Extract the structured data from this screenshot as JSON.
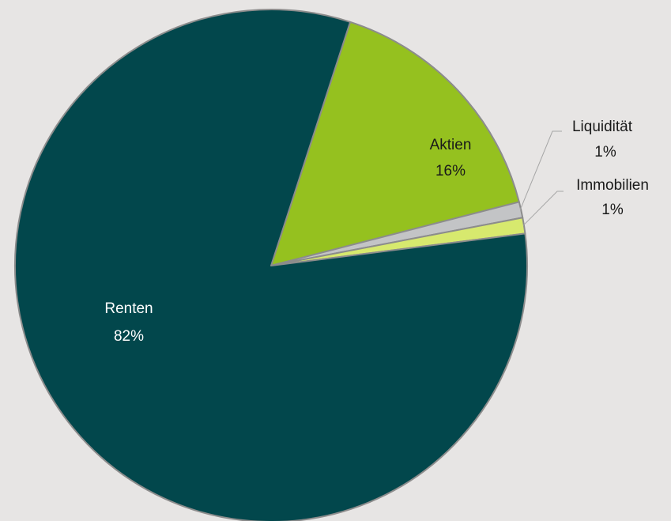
{
  "chart_data": {
    "type": "pie",
    "slices": [
      {
        "name": "Renten",
        "value": 82,
        "label": "82%",
        "color": "#02474c",
        "label_color": "#ffffff"
      },
      {
        "name": "Aktien",
        "value": 16,
        "label": "16%",
        "color": "#95c11f",
        "label_color": "#1a1a1a"
      },
      {
        "name": "Liquidität",
        "value": 1,
        "label": "1%",
        "color": "#c3c4c6",
        "label_color": "#1a1a1a"
      },
      {
        "name": "Immobilien",
        "value": 1,
        "label": "1%",
        "color": "#d7e96e",
        "label_color": "#1a1a1a"
      }
    ],
    "slice_order": [
      "Aktien",
      "Liquidität",
      "Immobilien",
      "Renten"
    ],
    "border_color": "#8c8c8c",
    "leader_line_color": "#a6a6a6",
    "background": "#e7e5e4"
  }
}
